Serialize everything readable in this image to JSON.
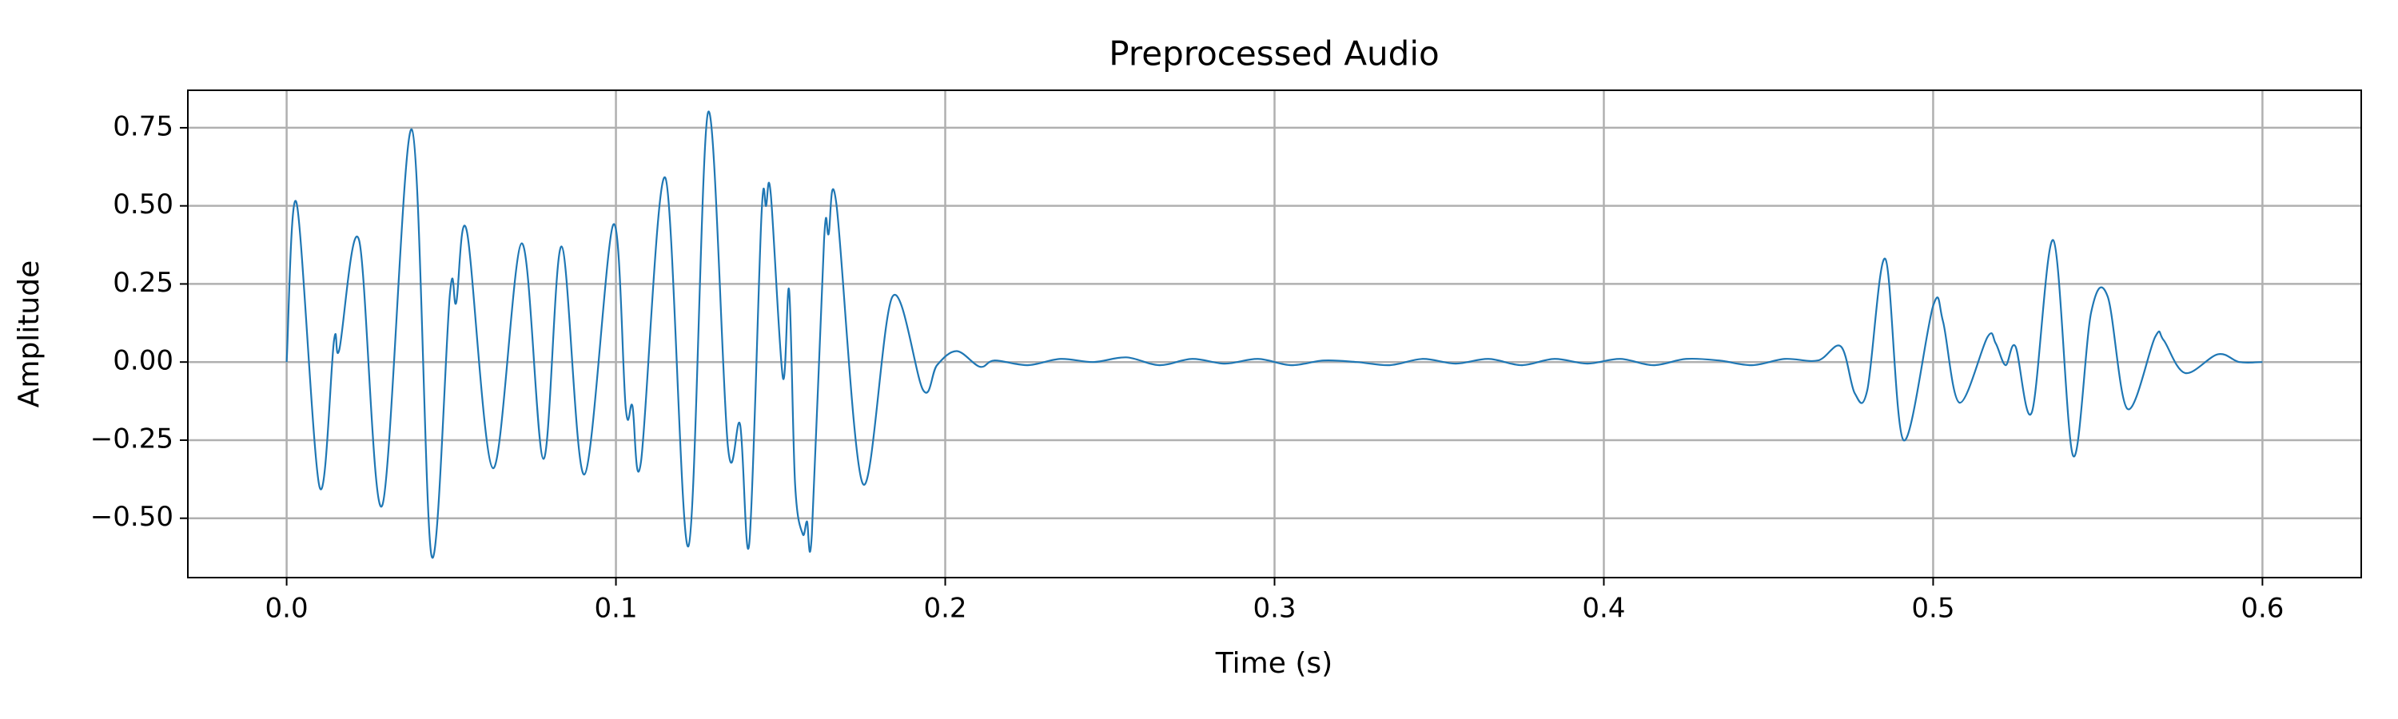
{
  "chart_data": {
    "type": "line",
    "title": "Preprocessed Audio",
    "x_label": "Time (s)",
    "y_label": "Amplitude",
    "xlim": [
      -0.03,
      0.63
    ],
    "ylim": [
      -0.69,
      0.87
    ],
    "xticks": [
      {
        "value": 0,
        "label": "0.0"
      },
      0.1,
      0.2,
      0.3,
      0.4,
      0.5,
      0.6
    ],
    "yticks": [
      {
        "value": -0.5,
        "label": "−0.50"
      },
      {
        "value": -0.25,
        "label": "−0.25"
      },
      {
        "value": 0,
        "label": "0.00"
      },
      {
        "value": 0.25,
        "label": "0.25"
      },
      {
        "value": 0.5,
        "label": "0.50"
      },
      {
        "value": 0.75,
        "label": "0.75"
      }
    ],
    "grid": true,
    "series": [
      {
        "color": "#1f77b4",
        "x": [
          0,
          0.003,
          0.01,
          0.0144,
          0.016,
          0.022,
          0.029,
          0.038,
          0.044,
          0.0496,
          0.0515,
          0.0547,
          0.0627,
          0.0714,
          0.078,
          0.0835,
          0.0904,
          0.0992,
          0.103,
          0.105,
          0.1076,
          0.115,
          0.122,
          0.128,
          0.134,
          0.1377,
          0.1405,
          0.1442,
          0.1456,
          0.147,
          0.1507,
          0.1526,
          0.1544,
          0.1567,
          0.158,
          0.1595,
          0.1632,
          0.1646,
          0.1669,
          0.175,
          0.184,
          0.1933,
          0.1975,
          0.2035,
          0.2105,
          0.215,
          0.225,
          0.235,
          0.245,
          0.255,
          0.265,
          0.275,
          0.285,
          0.295,
          0.305,
          0.315,
          0.325,
          0.335,
          0.345,
          0.355,
          0.365,
          0.375,
          0.385,
          0.395,
          0.405,
          0.415,
          0.425,
          0.435,
          0.445,
          0.455,
          0.465,
          0.472,
          0.4762,
          0.48,
          0.4855,
          0.491,
          0.5,
          0.503,
          0.508,
          0.5165,
          0.519,
          0.522,
          0.525,
          0.53,
          0.5365,
          0.5425,
          0.548,
          0.553,
          0.559,
          0.5674,
          0.57,
          0.5765,
          0.5865,
          0.593,
          0.6
        ],
        "values": [
          0,
          0.51,
          -0.4,
          0.07,
          0.04,
          0.39,
          -0.46,
          0.745,
          -0.62,
          0.22,
          0.19,
          0.42,
          -0.34,
          0.38,
          -0.31,
          0.37,
          -0.36,
          0.44,
          -0.15,
          -0.14,
          -0.32,
          0.59,
          -0.59,
          0.8,
          -0.27,
          -0.2,
          -0.58,
          0.47,
          0.5,
          0.54,
          -0.05,
          0.23,
          -0.39,
          -0.55,
          -0.51,
          -0.55,
          0.39,
          0.41,
          0.51,
          -0.39,
          0.21,
          -0.09,
          -0.01,
          0.035,
          -0.015,
          0.005,
          -0.01,
          0.01,
          0.0,
          0.015,
          -0.01,
          0.01,
          -0.005,
          0.01,
          -0.01,
          0.005,
          0.0,
          -0.01,
          0.01,
          -0.005,
          0.01,
          -0.01,
          0.01,
          -0.005,
          0.01,
          -0.01,
          0.01,
          0.005,
          -0.01,
          0.01,
          0.005,
          0.05,
          -0.1,
          -0.09,
          0.33,
          -0.25,
          0.18,
          0.13,
          -0.13,
          0.08,
          0.06,
          -0.01,
          0.05,
          -0.16,
          0.39,
          -0.3,
          0.16,
          0.21,
          -0.15,
          0.08,
          0.07,
          -0.035,
          0.025,
          0.0,
          0.0
        ]
      }
    ]
  }
}
